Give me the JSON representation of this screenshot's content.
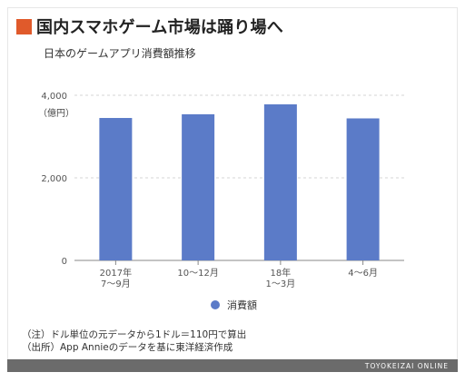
{
  "header": {
    "title": "国内スマホゲーム市場は踊り場へ",
    "subtitle": "日本のゲームアプリ消費額推移",
    "unit": "（億円）",
    "accent_color": "#e05a2b"
  },
  "chart_data": {
    "type": "bar",
    "categories": [
      [
        "2017年",
        "7〜9月"
      ],
      [
        "10〜12月"
      ],
      [
        "18年",
        "1〜3月"
      ],
      [
        "4〜6月"
      ]
    ],
    "series": [
      {
        "name": "消費額",
        "values": [
          3450,
          3540,
          3780,
          3440
        ],
        "color": "#5b7bc8"
      }
    ],
    "ylim": [
      0,
      4000
    ],
    "yticks": [
      0,
      2000,
      4000
    ],
    "ytick_labels": [
      "0",
      "2,000",
      "4,000"
    ],
    "grid": true,
    "legend_position": "bottom"
  },
  "notes": {
    "note": "（注）ドル単位の元データから1ドル＝110円で算出",
    "source": "（出所）App Annieのデータを基に東洋経済作成"
  },
  "footer": {
    "brand": "TOYOKEIZAI ONLINE"
  }
}
